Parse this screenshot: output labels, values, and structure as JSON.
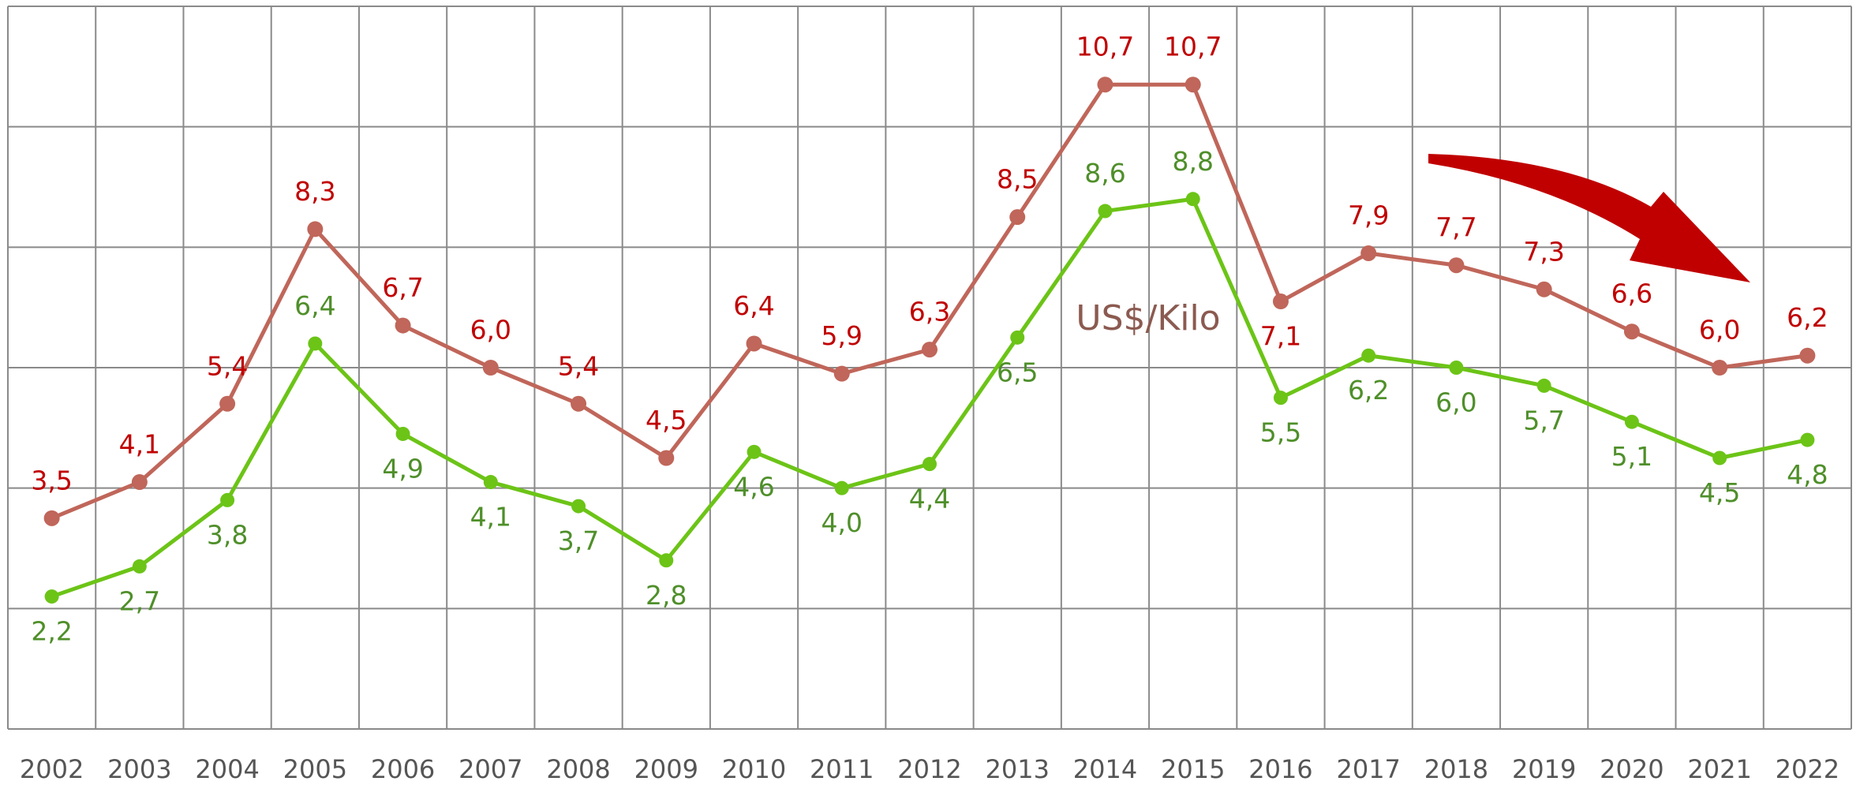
{
  "chart_data": {
    "type": "line",
    "annotation": "US$/Kilo",
    "categories": [
      "2002",
      "2003",
      "2004",
      "2005",
      "2006",
      "2007",
      "2008",
      "2009",
      "2010",
      "2011",
      "2012",
      "2013",
      "2014",
      "2015",
      "2016",
      "2017",
      "2018",
      "2019",
      "2020",
      "2021",
      "2022"
    ],
    "series": [
      {
        "color": "#c0665a",
        "label_color": "#c00000",
        "values": [
          3.5,
          4.1,
          5.4,
          8.3,
          6.7,
          6.0,
          5.4,
          4.5,
          6.4,
          5.9,
          6.3,
          8.5,
          10.7,
          10.7,
          7.1,
          7.9,
          7.7,
          7.3,
          6.6,
          6.0,
          6.2
        ],
        "value_labels": [
          "3,5",
          "4,1",
          "5,4",
          "8,3",
          "6,7",
          "6,0",
          "5,4",
          "4,5",
          "6,4",
          "5,9",
          "6,3",
          "8,5",
          "10,7",
          "10,7",
          "7,1",
          "7,9",
          "7,7",
          "7,3",
          "6,6",
          "6,0",
          "6,2"
        ]
      },
      {
        "color": "#6cc417",
        "label_color": "#4f8f2a",
        "values": [
          2.2,
          2.7,
          3.8,
          6.4,
          4.9,
          4.1,
          3.7,
          2.8,
          4.6,
          4.0,
          4.4,
          6.5,
          8.6,
          8.8,
          5.5,
          6.2,
          6.0,
          5.7,
          5.1,
          4.5,
          4.8
        ],
        "value_labels": [
          "2,2",
          "2,7",
          "3,8",
          "6,4",
          "4,9",
          "4,1",
          "3,7",
          "2,8",
          "4,6",
          "4,0",
          "4,4",
          "6,5",
          "8,6",
          "8,8",
          "5,5",
          "6,2",
          "6,0",
          "5,7",
          "5,1",
          "4,5",
          "4,8"
        ]
      }
    ],
    "ylim": [
      0,
      12
    ],
    "yticks": [
      0,
      2,
      4,
      6,
      8,
      10,
      12
    ],
    "grid": true
  }
}
